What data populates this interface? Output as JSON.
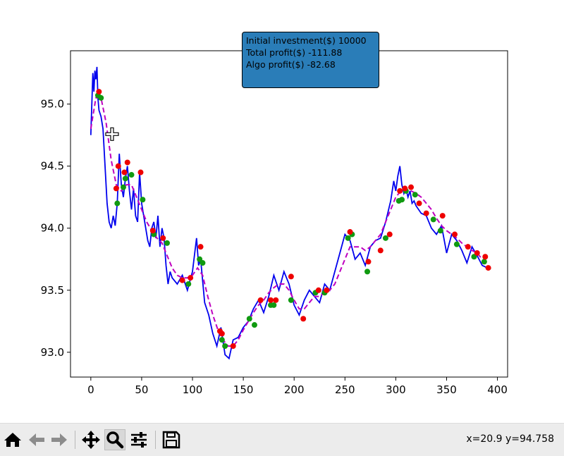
{
  "infobox": {
    "line1": "Initial investment($) 10000",
    "line2": "Total profit($) -111.88",
    "line3": "Algo profit($) -82.68",
    "background_color": "#2a7db8"
  },
  "toolbar": {
    "buttons": [
      "home-icon",
      "back-arrow-icon",
      "forward-arrow-icon",
      "pan-move-icon",
      "zoom-magnifier-icon",
      "configure-subplots-icon",
      "save-floppy-icon"
    ],
    "active_tool": "zoom-magnifier-icon",
    "coords": "x=20.9 y=94.758"
  },
  "cursor": {
    "icon": "crosshair-cursor-icon",
    "x": 20.9,
    "y": 94.758
  },
  "chart_data": {
    "type": "line",
    "xlim": [
      -20,
      410
    ],
    "ylim": [
      92.8,
      95.43
    ],
    "xticks": [
      0,
      50,
      100,
      150,
      200,
      250,
      300,
      350,
      400
    ],
    "xtick_labels": [
      "0",
      "50",
      "100",
      "150",
      "200",
      "250",
      "300",
      "350",
      "400"
    ],
    "yticks": [
      93.0,
      93.5,
      94.0,
      94.5,
      95.0
    ],
    "ytick_labels": [
      "93.0",
      "93.5",
      "94.0",
      "94.5",
      "95.0"
    ],
    "grid": false,
    "colors": {
      "price": "#0000ee",
      "moving_average": "#bf00bf",
      "buy": "#ee0000",
      "sell": "#109a10"
    },
    "series": [
      {
        "style": "solid",
        "x": [
          0,
          2,
          3,
          4,
          5,
          6,
          7,
          8,
          10,
          12,
          14,
          16,
          18,
          20,
          22,
          24,
          26,
          28,
          30,
          32,
          34,
          36,
          38,
          40,
          42,
          44,
          46,
          48,
          50,
          52,
          54,
          56,
          58,
          60,
          62,
          64,
          66,
          68,
          70,
          72,
          74,
          76,
          78,
          80,
          85,
          90,
          95,
          100,
          104,
          106,
          108,
          112,
          116,
          120,
          124,
          128,
          132,
          136,
          140,
          145,
          150,
          155,
          160,
          165,
          170,
          175,
          180,
          185,
          190,
          195,
          200,
          205,
          210,
          215,
          220,
          225,
          230,
          235,
          240,
          245,
          250,
          255,
          260,
          265,
          270,
          275,
          280,
          285,
          290,
          295,
          298,
          300,
          302,
          304,
          306,
          308,
          310,
          312,
          314,
          316,
          318,
          320,
          325,
          330,
          335,
          340,
          345,
          350,
          355,
          360,
          365,
          370,
          375,
          380,
          385,
          390
        ],
        "y": [
          94.75,
          95.25,
          95.1,
          95.27,
          95.2,
          95.3,
          95.05,
          94.95,
          94.9,
          94.8,
          94.5,
          94.2,
          94.05,
          94.0,
          94.1,
          94.02,
          94.2,
          94.6,
          94.35,
          94.25,
          94.4,
          94.5,
          94.3,
          94.15,
          94.32,
          94.1,
          94.05,
          94.45,
          94.2,
          94.1,
          94.0,
          93.9,
          93.85,
          94.0,
          94.05,
          93.92,
          94.1,
          93.85,
          94.0,
          93.92,
          93.7,
          93.55,
          93.65,
          93.6,
          93.55,
          93.62,
          93.5,
          93.65,
          93.92,
          93.7,
          93.75,
          93.4,
          93.3,
          93.15,
          93.05,
          93.2,
          92.98,
          92.95,
          93.1,
          93.12,
          93.2,
          93.25,
          93.35,
          93.42,
          93.32,
          93.45,
          93.62,
          93.5,
          93.65,
          93.55,
          93.38,
          93.3,
          93.42,
          93.5,
          93.45,
          93.4,
          93.55,
          93.5,
          93.65,
          93.8,
          93.95,
          93.9,
          93.75,
          93.8,
          93.7,
          93.85,
          93.9,
          93.92,
          94.05,
          94.22,
          94.38,
          94.3,
          94.42,
          94.5,
          94.35,
          94.28,
          94.32,
          94.25,
          94.3,
          94.2,
          94.22,
          94.18,
          94.12,
          94.1,
          94.0,
          93.95,
          94.02,
          93.8,
          93.95,
          93.9,
          93.82,
          93.72,
          93.85,
          93.78,
          93.7,
          93.68
        ],
        "values_are": "approximate, read from the plot"
      },
      {
        "style": "dashed",
        "x": [
          0,
          5,
          10,
          15,
          20,
          25,
          30,
          35,
          40,
          45,
          50,
          55,
          60,
          65,
          70,
          75,
          80,
          85,
          90,
          95,
          100,
          105,
          110,
          115,
          120,
          125,
          130,
          135,
          140,
          145,
          150,
          155,
          160,
          165,
          170,
          175,
          180,
          185,
          190,
          195,
          200,
          205,
          210,
          215,
          220,
          225,
          230,
          235,
          240,
          245,
          250,
          255,
          260,
          265,
          270,
          275,
          280,
          285,
          290,
          295,
          300,
          305,
          310,
          315,
          320,
          325,
          330,
          335,
          340,
          345,
          350,
          355,
          360,
          365,
          370,
          375,
          380,
          385,
          390
        ],
        "y": [
          94.8,
          95.05,
          95.05,
          94.85,
          94.55,
          94.35,
          94.3,
          94.35,
          94.35,
          94.25,
          94.15,
          94.05,
          93.98,
          93.92,
          93.88,
          93.78,
          93.68,
          93.62,
          93.6,
          93.6,
          93.62,
          93.68,
          93.62,
          93.45,
          93.3,
          93.18,
          93.1,
          93.05,
          93.05,
          93.1,
          93.18,
          93.25,
          93.32,
          93.38,
          93.42,
          93.48,
          93.52,
          93.55,
          93.55,
          93.5,
          93.42,
          93.35,
          93.35,
          93.4,
          93.45,
          93.45,
          93.48,
          93.5,
          93.55,
          93.65,
          93.75,
          93.85,
          93.85,
          93.85,
          93.82,
          93.85,
          93.9,
          93.95,
          94.05,
          94.15,
          94.25,
          94.3,
          94.3,
          94.3,
          94.28,
          94.25,
          94.2,
          94.15,
          94.08,
          94.02,
          93.98,
          93.95,
          93.92,
          93.88,
          93.85,
          93.82,
          93.8,
          93.75,
          93.72
        ],
        "values_are": "approximate, read from the plot"
      }
    ],
    "buy_points": [
      [
        8,
        95.1
      ],
      [
        25,
        94.32
      ],
      [
        27,
        94.5
      ],
      [
        33,
        94.45
      ],
      [
        36,
        94.53
      ],
      [
        49,
        94.45
      ],
      [
        61,
        93.98
      ],
      [
        71,
        93.92
      ],
      [
        90,
        93.58
      ],
      [
        98,
        93.6
      ],
      [
        108,
        93.85
      ],
      [
        127,
        93.17
      ],
      [
        129,
        93.15
      ],
      [
        140,
        93.05
      ],
      [
        167,
        93.42
      ],
      [
        177,
        93.42
      ],
      [
        182,
        93.42
      ],
      [
        197,
        93.61
      ],
      [
        209,
        93.27
      ],
      [
        224,
        93.5
      ],
      [
        232,
        93.5
      ],
      [
        255,
        93.97
      ],
      [
        273,
        93.73
      ],
      [
        285,
        93.82
      ],
      [
        294,
        93.95
      ],
      [
        304,
        94.3
      ],
      [
        309,
        94.32
      ],
      [
        315,
        94.33
      ],
      [
        323,
        94.2
      ],
      [
        330,
        94.12
      ],
      [
        346,
        94.1
      ],
      [
        358,
        93.95
      ],
      [
        371,
        93.85
      ],
      [
        380,
        93.8
      ],
      [
        388,
        93.77
      ],
      [
        391,
        93.68
      ]
    ],
    "sell_points": [
      [
        7,
        95.07
      ],
      [
        10,
        95.05
      ],
      [
        26,
        94.2
      ],
      [
        32,
        94.33
      ],
      [
        34,
        94.4
      ],
      [
        40,
        94.43
      ],
      [
        51,
        94.23
      ],
      [
        62,
        93.95
      ],
      [
        75,
        93.88
      ],
      [
        96,
        93.55
      ],
      [
        107,
        93.75
      ],
      [
        110,
        93.72
      ],
      [
        129,
        93.1
      ],
      [
        132,
        93.05
      ],
      [
        156,
        93.27
      ],
      [
        161,
        93.22
      ],
      [
        177,
        93.38
      ],
      [
        180,
        93.38
      ],
      [
        197,
        93.42
      ],
      [
        221,
        93.48
      ],
      [
        230,
        93.48
      ],
      [
        253,
        93.92
      ],
      [
        257,
        93.95
      ],
      [
        272,
        93.65
      ],
      [
        290,
        93.92
      ],
      [
        303,
        94.22
      ],
      [
        306,
        94.23
      ],
      [
        310,
        94.3
      ],
      [
        319,
        94.27
      ],
      [
        337,
        94.07
      ],
      [
        344,
        93.98
      ],
      [
        360,
        93.87
      ],
      [
        377,
        93.77
      ],
      [
        387,
        93.73
      ]
    ]
  }
}
